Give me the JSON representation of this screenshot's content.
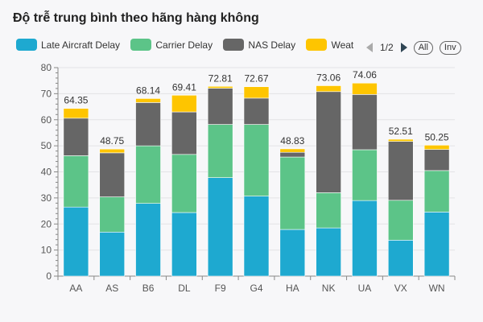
{
  "title": "Độ trễ trung bình theo hãng hàng không",
  "legend": [
    {
      "label": "Late Aircraft Delay",
      "color": "#1ea9d0"
    },
    {
      "label": "Carrier Delay",
      "color": "#5cc488"
    },
    {
      "label": "NAS Delay",
      "color": "#666666"
    },
    {
      "label": "Weat",
      "color": "#fec500"
    }
  ],
  "pager": {
    "text": "1/2",
    "all_label": "All",
    "inv_label": "Inv"
  },
  "chart_data": {
    "type": "bar",
    "stacked": true,
    "categories": [
      "AA",
      "AS",
      "B6",
      "DL",
      "F9",
      "G4",
      "HA",
      "NK",
      "UA",
      "VX",
      "WN"
    ],
    "ylim": [
      0,
      80
    ],
    "yticks": [
      0,
      10,
      20,
      30,
      40,
      50,
      60,
      70,
      80
    ],
    "totals": [
      "64.35",
      "48.75",
      "68.14",
      "69.41",
      "72.81",
      "72.67",
      "48.83",
      "73.06",
      "74.06",
      "52.51",
      "50.25"
    ],
    "series": [
      {
        "name": "Late Aircraft Delay",
        "color": "#1ea9d0",
        "values": [
          26.5,
          16.9,
          27.9,
          24.4,
          37.8,
          30.7,
          17.9,
          18.5,
          29.0,
          13.8,
          24.6
        ]
      },
      {
        "name": "Carrier Delay",
        "color": "#5cc488",
        "values": [
          19.7,
          13.5,
          22.1,
          22.3,
          20.4,
          27.5,
          27.8,
          13.5,
          19.5,
          15.3,
          15.9
        ]
      },
      {
        "name": "NAS Delay",
        "color": "#666666",
        "values": [
          14.4,
          16.9,
          16.6,
          16.3,
          13.9,
          10.1,
          1.8,
          38.8,
          21.2,
          22.6,
          8.1
        ]
      },
      {
        "name": "Weather Delay",
        "color": "#fec500",
        "values": [
          3.75,
          1.45,
          1.54,
          6.41,
          0.71,
          4.37,
          1.33,
          2.26,
          4.36,
          0.81,
          1.65
        ]
      }
    ]
  }
}
